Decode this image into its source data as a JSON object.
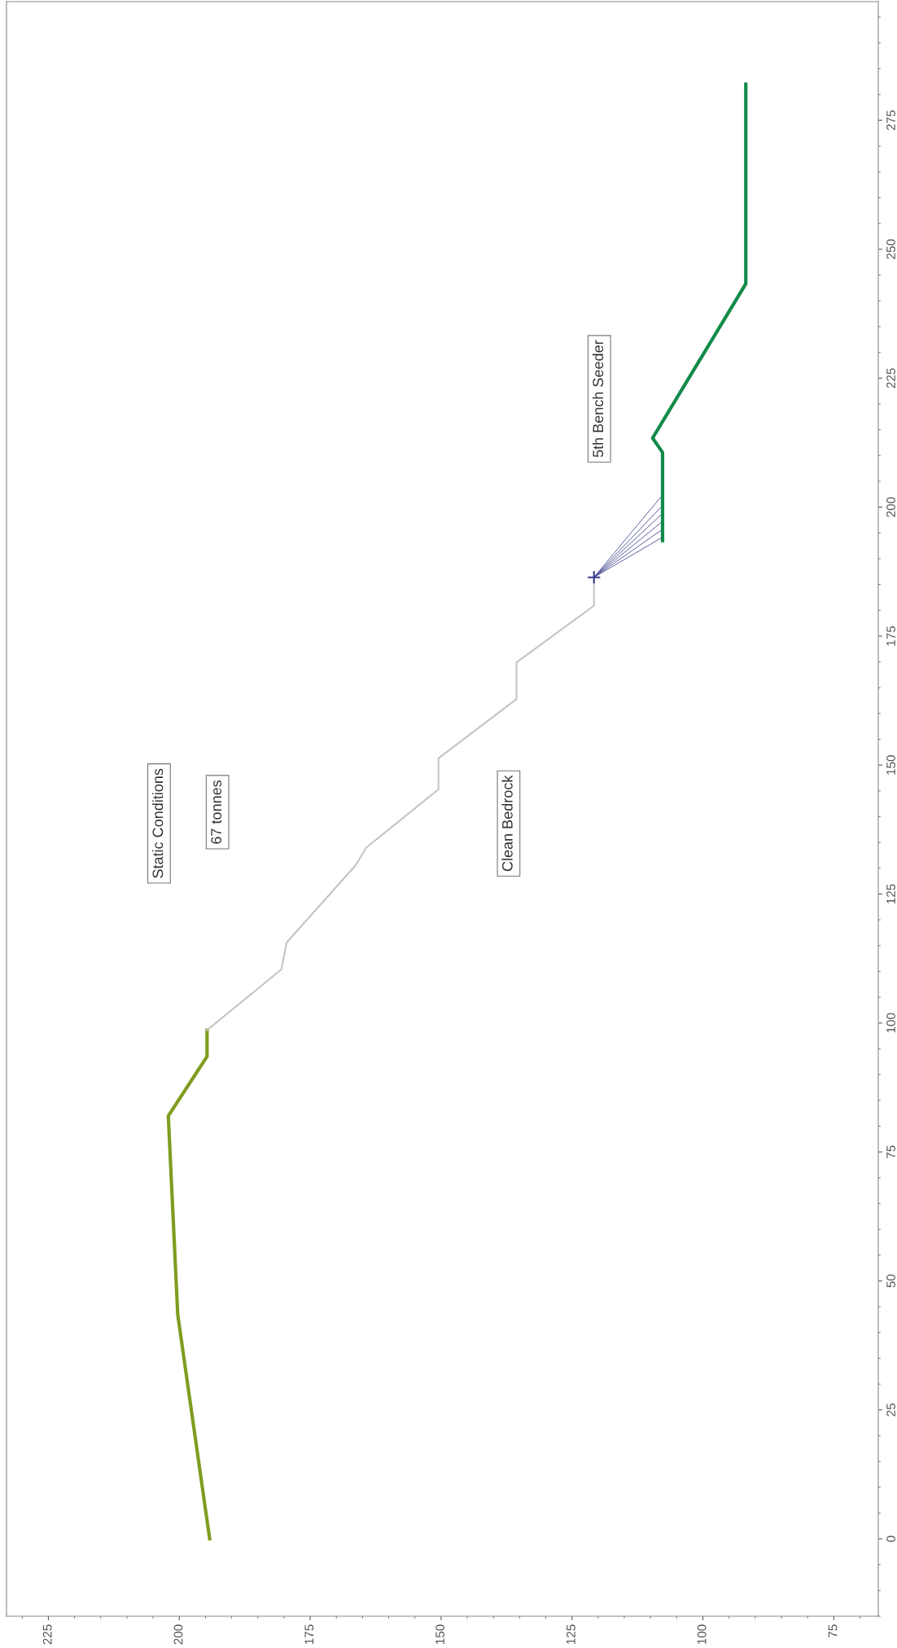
{
  "chart_data": {
    "type": "line",
    "xlim": [
      233,
      66.5
    ],
    "ylim": [
      -15,
      298
    ],
    "xticks": [
      75,
      100,
      125,
      150,
      175,
      200,
      225
    ],
    "yticks": [
      0,
      25,
      50,
      75,
      100,
      125,
      150,
      175,
      200,
      225,
      250,
      275
    ],
    "grid": false,
    "legend": false,
    "line_style": "solid",
    "series": [
      {
        "color": "#7f9c1f",
        "x": [
          194.2,
          200.3,
          202.1,
          194.7,
          194.7
        ],
        "values": [
          0,
          43.5,
          82,
          93.5,
          98.6
        ]
      },
      {
        "color": "#c4c4c4",
        "x": [
          194.7,
          180.5,
          179.5,
          166.3,
          164.3,
          150.5,
          150.5,
          135.6,
          135.6,
          120.8,
          120.8
        ],
        "values": [
          98.6,
          110.4,
          115.6,
          130.6,
          134,
          145.3,
          151.3,
          162.8,
          169.9,
          180.9,
          186.4
        ]
      },
      {
        "color": "#3b3f8c",
        "x": [
          120.8,
          108
        ],
        "values": [
          186.4,
          194
        ]
      },
      {
        "color": "#3b3f8c",
        "x": [
          120.8,
          108
        ],
        "values": [
          186.4,
          195.5
        ]
      },
      {
        "color": "#3b3f8c",
        "x": [
          120.8,
          108
        ],
        "values": [
          186.4,
          197
        ]
      },
      {
        "color": "#3b3f8c",
        "x": [
          120.8,
          108
        ],
        "values": [
          186.4,
          198.5
        ]
      },
      {
        "color": "#3b3f8c",
        "x": [
          120.8,
          108
        ],
        "values": [
          186.4,
          200
        ]
      },
      {
        "color": "#3b3f8c",
        "x": [
          120.8,
          108
        ],
        "values": [
          186.4,
          202
        ]
      },
      {
        "color": "#138a4a",
        "x": [
          107.7,
          107.7,
          109.6,
          91.8,
          91.8
        ],
        "values": [
          193.5,
          210.6,
          213.4,
          243.3,
          282
        ]
      },
      {
        "type": "scatter",
        "color": "#3b3f8c",
        "marker": "cross",
        "x": [
          120.8
        ],
        "values": [
          186.4
        ]
      }
    ],
    "annotations": [
      "Static Conditions",
      "67 tonnes",
      "Clean Bedrock",
      "5th Bench Seeder"
    ]
  }
}
